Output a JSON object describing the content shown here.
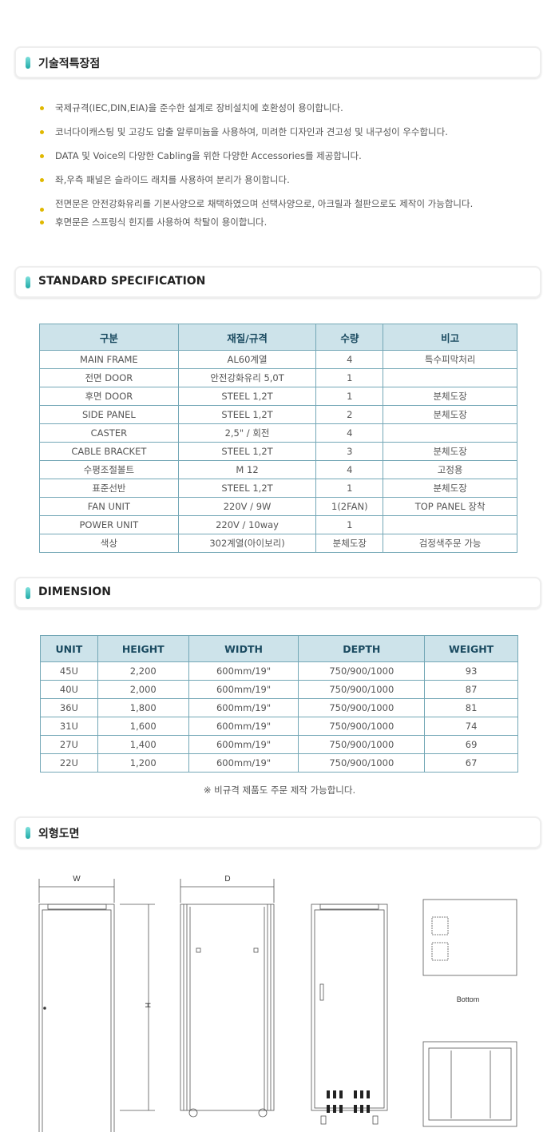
{
  "features": {
    "title": "기술적특장점",
    "items": [
      "국제규격(IEC,DIN,EIA)을 준수한 설계로 장비설치에 호환성이 용이합니다.",
      "코너다이캐스팅 및 고강도 압출 알루미늄을 사용하여, 미려한 디자인과 견고성 및 내구성이 우수합니다.",
      "DATA 및 Voice의 다양한 Cabling을 위한 다양한 Accessories를 제공합니다.",
      "좌,우측 패널은 슬라이드 래치를 사용하여 분리가 용이합니다.",
      "전면문은 안전강화유리를 기본사양으로 채택하였으며 선택사양으로, 아크릴과 철판으로도 제작이 가능합니다.",
      "후면문은 스프링식 힌지를 사용하여 착탈이 용이합니다."
    ]
  },
  "spec": {
    "title": "STANDARD SPECIFICATION",
    "headers": [
      "구분",
      "재질/규격",
      "수량",
      "비고"
    ],
    "rows": [
      [
        "MAIN FRAME",
        "AL60계열",
        "4",
        "특수피막처리"
      ],
      [
        "전면 DOOR",
        "안전강화유리 5,0T",
        "1",
        ""
      ],
      [
        "후면 DOOR",
        "STEEL 1,2T",
        "1",
        "분체도장"
      ],
      [
        "SIDE PANEL",
        "STEEL 1,2T",
        "2",
        "분체도장"
      ],
      [
        "CASTER",
        "2,5\" / 회전",
        "4",
        ""
      ],
      [
        "CABLE BRACKET",
        "STEEL 1,2T",
        "3",
        "분체도장"
      ],
      [
        "수평조절볼트",
        "M 12",
        "4",
        "고정용"
      ],
      [
        "표준선반",
        "STEEL 1,2T",
        "1",
        "분체도장"
      ],
      [
        "FAN UNIT",
        "220V / 9W",
        "1(2FAN)",
        "TOP PANEL 장착"
      ],
      [
        "POWER UNIT",
        "220V / 10way",
        "1",
        ""
      ],
      [
        "색상",
        "302계열(아이보리)",
        "분체도장",
        "검정색주문 가능"
      ]
    ]
  },
  "dimension": {
    "title": "DIMENSION",
    "headers": [
      "UNIT",
      "HEIGHT",
      "WIDTH",
      "DEPTH",
      "WEIGHT"
    ],
    "rows": [
      [
        "45U",
        "2,200",
        "600mm/19\"",
        "750/900/1000",
        "93"
      ],
      [
        "40U",
        "2,000",
        "600mm/19\"",
        "750/900/1000",
        "87"
      ],
      [
        "36U",
        "1,800",
        "600mm/19\"",
        "750/900/1000",
        "81"
      ],
      [
        "31U",
        "1,600",
        "600mm/19\"",
        "750/900/1000",
        "74"
      ],
      [
        "27U",
        "1,400",
        "600mm/19\"",
        "750/900/1000",
        "69"
      ],
      [
        "22U",
        "1,200",
        "600mm/19\"",
        "750/900/1000",
        "67"
      ]
    ],
    "note": "※ 비규격 제품도 주문 제작 가능합니다."
  },
  "drawing": {
    "title": "외형도면",
    "w_label": "W",
    "d_label": "D",
    "h_label": "H",
    "bottom_label": "Bottom"
  },
  "colors": {
    "header_bg": "#cde3ea",
    "border": "#73a7b6",
    "bullet": "#e0b800",
    "accent": "#1fa9a6"
  }
}
